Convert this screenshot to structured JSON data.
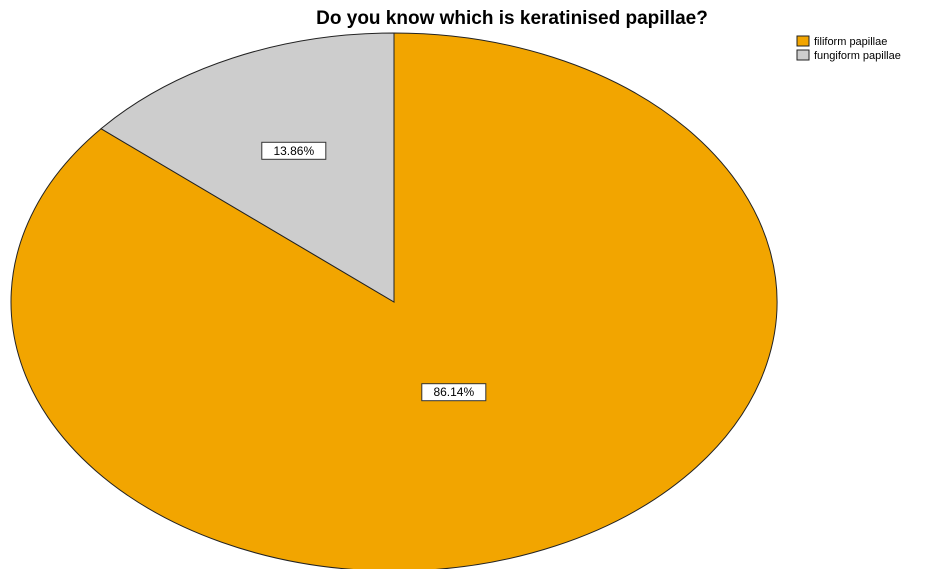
{
  "chart_data": {
    "type": "pie",
    "title": "Do you know which is keratinised papillae?",
    "legend_position": "top-right",
    "start_angle_deg": 0,
    "direction": "clockwise",
    "slices": [
      {
        "label": "filiform papillae",
        "value": 86.14,
        "data_label": "86.14%",
        "color": "#F2A500"
      },
      {
        "label": "fungiform papillae",
        "value": 13.86,
        "data_label": "13.86%",
        "color": "#CDCDCD"
      }
    ]
  }
}
